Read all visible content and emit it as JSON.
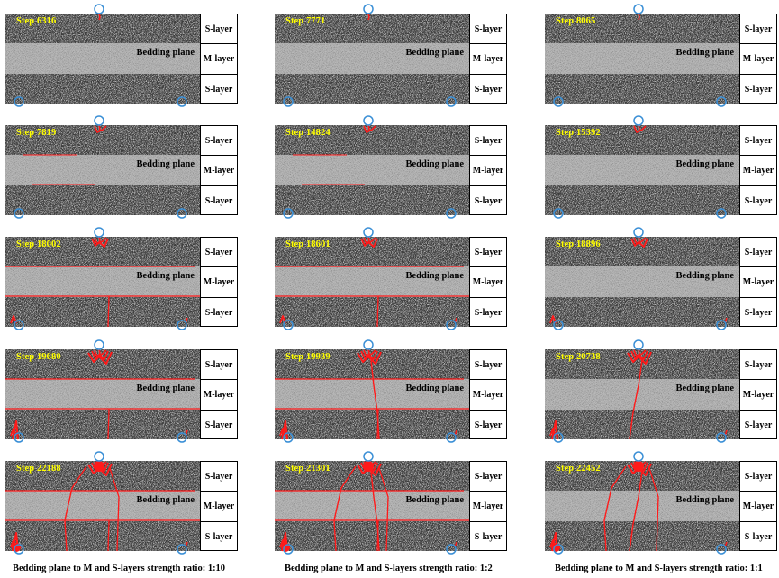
{
  "columns": [
    {
      "caption": "Bedding plane to M and S-layers strength ratio: 1:10",
      "panels": [
        {
          "step": "Step 6316",
          "stage": 0
        },
        {
          "step": "Step 7819",
          "stage": 1
        },
        {
          "step": "Step 18002",
          "stage": 2
        },
        {
          "step": "Step 19680",
          "stage": 3
        },
        {
          "step": "Step 22188",
          "stage": 4
        }
      ]
    },
    {
      "caption": "Bedding plane to M and S-layers strength ratio: 1:2",
      "panels": [
        {
          "step": "Step 7771",
          "stage": 0
        },
        {
          "step": "Step 14824",
          "stage": 1
        },
        {
          "step": "Step 18601",
          "stage": 2
        },
        {
          "step": "Step 19939",
          "stage": 3
        },
        {
          "step": "Step 21301",
          "stage": 4
        }
      ]
    },
    {
      "caption": "Bedding plane to M and S-layers strength ratio: 1:1",
      "panels": [
        {
          "step": "Step 8065",
          "stage": 0
        },
        {
          "step": "Step 15392",
          "stage": 1
        },
        {
          "step": "Step 18896",
          "stage": 2
        },
        {
          "step": "Step 20738",
          "stage": 3
        },
        {
          "step": "Step 22452",
          "stage": 4
        }
      ]
    }
  ],
  "labels": {
    "bedding_plane": "Bedding plane",
    "s_layer": "S-layer",
    "m_layer": "M-layer"
  },
  "colors": {
    "s_layer": "#3c3c3c",
    "m_layer": "#b9b9b9",
    "crack": "#ff1a1a",
    "loading_point": "#3a8fd6",
    "step_text": "#ffff00"
  }
}
